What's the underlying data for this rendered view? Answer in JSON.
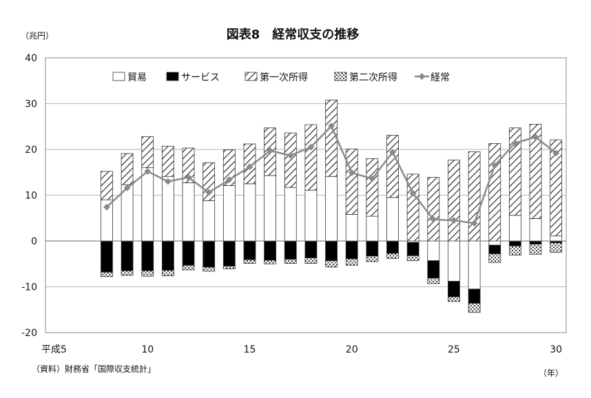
{
  "chart_data": {
    "type": "bar",
    "stacked": true,
    "title": "図表8　経常収支の推移",
    "yunit": "（兆円）",
    "xunit": "（年）",
    "source": "（資料）財務省「国際収支統計」",
    "x_era_label": "平成5",
    "ylim": [
      -20,
      40
    ],
    "yticks": [
      40,
      30,
      20,
      10,
      0,
      -10,
      -20
    ],
    "x": [
      8,
      9,
      10,
      11,
      12,
      13,
      14,
      15,
      16,
      17,
      18,
      19,
      20,
      21,
      22,
      23,
      24,
      25,
      26,
      27,
      28,
      29,
      30
    ],
    "xtick_values": [
      10,
      15,
      20,
      25,
      30
    ],
    "xtick_labels": [
      "10",
      "15",
      "20",
      "25",
      "30"
    ],
    "grid": true,
    "legend_position": "top",
    "series": [
      {
        "name": "貿易",
        "kind": "bar",
        "pattern": "white",
        "values": [
          9.0,
          12.3,
          16.0,
          14.1,
          12.7,
          8.8,
          12.1,
          12.5,
          14.3,
          11.7,
          11.1,
          14.1,
          5.8,
          5.4,
          9.5,
          -0.3,
          -4.3,
          -8.8,
          -10.5,
          -0.9,
          5.6,
          4.9,
          1.1
        ]
      },
      {
        "name": "サービス",
        "kind": "bar",
        "pattern": "black",
        "values": [
          -6.8,
          -6.5,
          -6.5,
          -6.4,
          -5.3,
          -5.7,
          -5.5,
          -4.1,
          -4.2,
          -4.0,
          -3.7,
          -4.3,
          -3.9,
          -3.3,
          -2.7,
          -2.9,
          -3.8,
          -3.4,
          -3.1,
          -1.9,
          -1.1,
          -0.7,
          -0.4
        ]
      },
      {
        "name": "第一次所得",
        "kind": "bar",
        "pattern": "hatch",
        "values": [
          6.2,
          6.8,
          6.8,
          6.6,
          7.6,
          8.3,
          7.8,
          8.7,
          10.4,
          11.9,
          14.3,
          16.7,
          14.3,
          12.6,
          13.6,
          14.6,
          13.9,
          17.7,
          19.5,
          21.3,
          19.1,
          20.6,
          21.0
        ]
      },
      {
        "name": "第二次所得",
        "kind": "bar",
        "pattern": "dots",
        "values": [
          -1.0,
          -1.0,
          -1.2,
          -1.2,
          -1.0,
          -0.9,
          -0.6,
          -0.8,
          -0.8,
          -0.9,
          -1.2,
          -1.4,
          -1.4,
          -1.2,
          -1.1,
          -1.1,
          -1.2,
          -1.0,
          -2.0,
          -1.9,
          -2.0,
          -2.2,
          -2.1
        ]
      },
      {
        "name": "経常",
        "kind": "line",
        "color": "#8a8a8a",
        "values": [
          7.4,
          11.6,
          15.2,
          13.0,
          13.9,
          10.6,
          13.4,
          16.2,
          19.7,
          18.7,
          20.5,
          25.1,
          14.9,
          13.6,
          19.4,
          10.4,
          4.7,
          4.5,
          3.9,
          16.5,
          21.4,
          22.7,
          19.2
        ]
      }
    ]
  }
}
